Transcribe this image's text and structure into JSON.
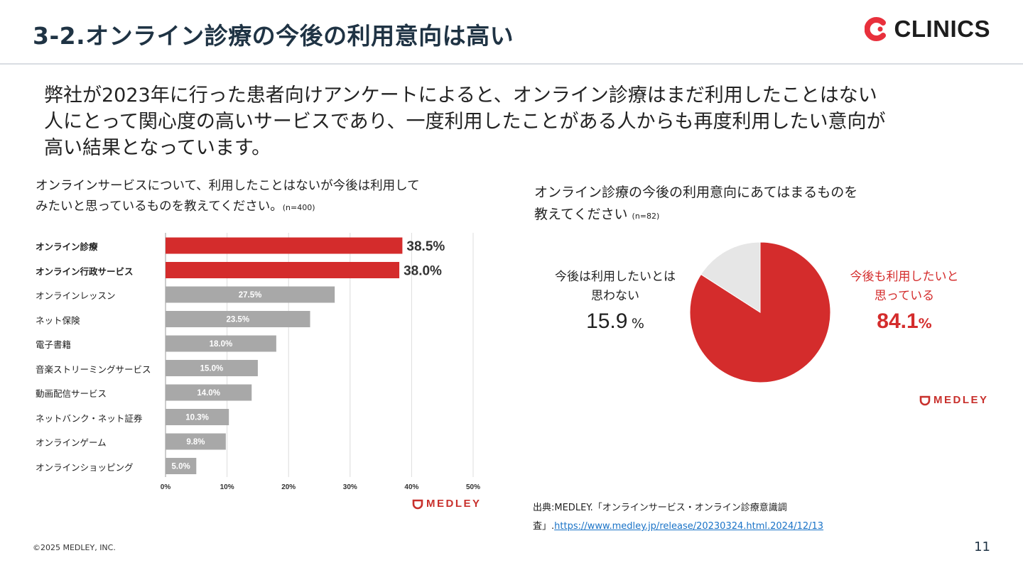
{
  "header": {
    "title": "3-2.オンライン診療の今後の利用意向は高い",
    "logo_text": "CLINICS",
    "logo_color": "#e8303c"
  },
  "lead": {
    "line1": "弊社が2023年に行った患者向けアンケートによると、オンライン診療はまだ利用したことはない",
    "line2": "人にとって関心度の高いサービスであり、一度利用したことがある人からも再度利用したい意向が",
    "line3": "高い結果となっています。"
  },
  "left_chart": {
    "question_line1": "オンラインサービスについて、利用したことはないが今後は利用して",
    "question_line2": "みたいと思っているものを教えてください。",
    "n_label": "(n=400)",
    "brand": "MEDLEY"
  },
  "right_chart": {
    "question_line1": "オンライン診療の今後の利用意向にあてはまるものを",
    "question_line2": "教えてください",
    "n_label": "(n=82)",
    "no_label_line1": "今後は利用したいとは",
    "no_label_line2": "思わない",
    "no_value": "15.9",
    "yes_label_line1": "今後も利用したいと",
    "yes_label_line2": "思っている",
    "yes_value": "84.1",
    "pct_sign": "%",
    "brand": "MEDLEY"
  },
  "chart_data": [
    {
      "type": "bar",
      "orientation": "horizontal",
      "title": "オンラインサービスについて、利用したことはないが今後は利用してみたいと思っているものを教えてください。(n=400)",
      "categories": [
        "オンライン診療",
        "オンライン行政サービス",
        "オンラインレッスン",
        "ネット保険",
        "電子書籍",
        "音楽ストリーミングサービス",
        "動画配信サービス",
        "ネットバンク・ネット証券",
        "オンラインゲーム",
        "オンラインショッピング"
      ],
      "values": [
        38.5,
        38.0,
        27.5,
        23.5,
        18.0,
        15.0,
        14.0,
        10.3,
        9.8,
        5.0
      ],
      "value_labels": [
        "38.5%",
        "38.0%",
        "27.5%",
        "23.5%",
        "18.0%",
        "15.0%",
        "14.0%",
        "10.3%",
        "9.8%",
        "5.0%"
      ],
      "highlight": [
        true,
        true,
        false,
        false,
        false,
        false,
        false,
        false,
        false,
        false
      ],
      "xlim": [
        0,
        50
      ],
      "xticks": [
        "0%",
        "10%",
        "20%",
        "30%",
        "40%",
        "50%"
      ],
      "colors": {
        "highlight": "#d42c2c",
        "normal": "#a8a8a8"
      }
    },
    {
      "type": "pie",
      "title": "オンライン診療の今後の利用意向にあてはまるものを教えてください (n=82)",
      "labels": [
        "今後も利用したいと思っている",
        "今後は利用したいとは思わない"
      ],
      "values": [
        84.1,
        15.9
      ],
      "colors": [
        "#d42c2c",
        "#e6e6e6"
      ]
    }
  ],
  "source": {
    "prefix": "出典:MEDLEY.「オンラインサービス・オンライン診療意識調",
    "prefix2": "査」.",
    "url": "https://www.medley.jp/release/20230324.html.2024/12/13"
  },
  "footer": {
    "copyright": "©2025 MEDLEY, INC.",
    "page_number": "11"
  }
}
